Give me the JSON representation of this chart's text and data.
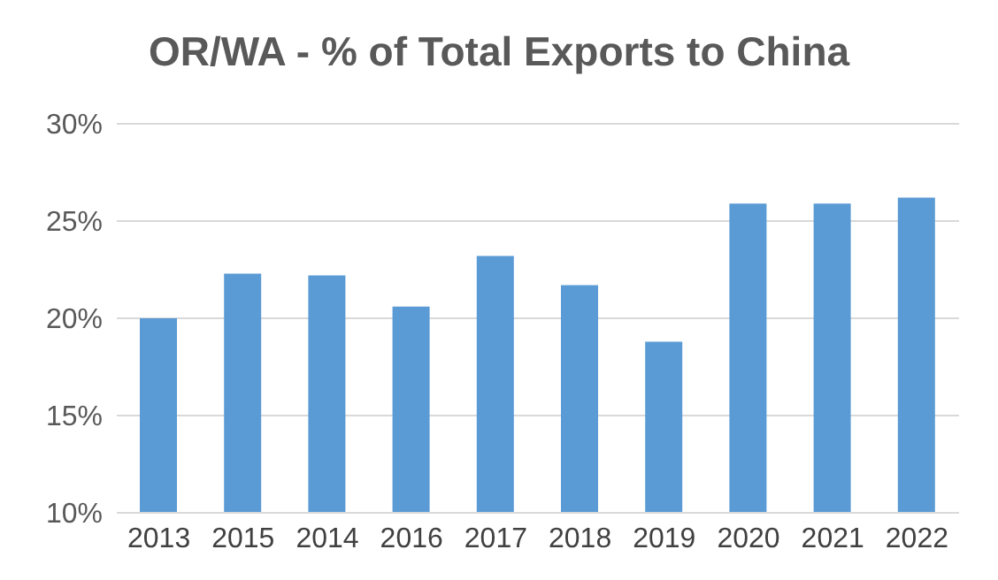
{
  "chart_data": {
    "type": "bar",
    "title": "OR/WA - % of Total Exports to China",
    "categories": [
      "2013",
      "2015",
      "2014",
      "2016",
      "2017",
      "2018",
      "2019",
      "2020",
      "2021",
      "2022"
    ],
    "values": [
      20.0,
      22.3,
      22.2,
      20.6,
      23.2,
      21.7,
      18.8,
      25.9,
      25.9,
      26.2
    ],
    "color": "#5b9bd5",
    "ylim": [
      10,
      30
    ],
    "yticks": [
      {
        "value": 10,
        "label": "10%"
      },
      {
        "value": 15,
        "label": "15%"
      },
      {
        "value": 20,
        "label": "20%"
      },
      {
        "value": 25,
        "label": "25%"
      },
      {
        "value": 30,
        "label": "30%"
      }
    ],
    "grid": "y"
  }
}
